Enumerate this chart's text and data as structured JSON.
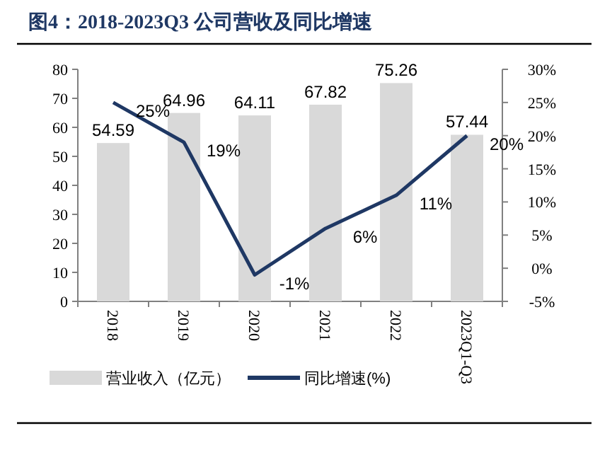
{
  "chart_data": {
    "type": "bar",
    "title": "图4：2018-2023Q3 公司营收及同比增速",
    "categories": [
      "2018",
      "2019",
      "2020",
      "2021",
      "2022",
      "2023Q1-Q3"
    ],
    "series": [
      {
        "name": "营业收入（亿元）",
        "color": "#d9d9d9",
        "values": [
          54.59,
          64.96,
          64.11,
          67.82,
          75.26,
          57.44
        ],
        "value_labels": [
          "54.59",
          "64.96",
          "64.11",
          "67.82",
          "75.26",
          "57.44"
        ]
      },
      {
        "name": "同比增速(%)",
        "type": "line",
        "axis": "y2",
        "color": "#1f3864",
        "values": [
          25,
          19,
          -1,
          6,
          11,
          20
        ],
        "value_labels": [
          "25%",
          "19%",
          "-1%",
          "6%",
          "11%",
          "20%"
        ]
      }
    ],
    "ylim": [
      0,
      80
    ],
    "yticks": [
      0,
      10,
      20,
      30,
      40,
      50,
      60,
      70,
      80
    ],
    "y2lim": [
      -5,
      30
    ],
    "y2ticks": [
      {
        "value": -5,
        "label": "-5%"
      },
      {
        "value": 0,
        "label": "0%"
      },
      {
        "value": 5,
        "label": "5%"
      },
      {
        "value": 10,
        "label": "10%"
      },
      {
        "value": 15,
        "label": "15%"
      },
      {
        "value": 20,
        "label": "20%"
      },
      {
        "value": 25,
        "label": "25%"
      },
      {
        "value": 30,
        "label": "30%"
      }
    ],
    "grid": false,
    "legend": "bottom",
    "marker": "none"
  }
}
